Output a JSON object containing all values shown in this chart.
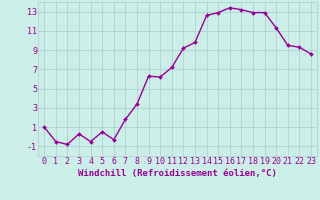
{
  "x": [
    0,
    1,
    2,
    3,
    4,
    5,
    6,
    7,
    8,
    9,
    10,
    11,
    12,
    13,
    14,
    15,
    16,
    17,
    18,
    19,
    20,
    21,
    22,
    23
  ],
  "y": [
    1,
    -0.5,
    -0.8,
    0.3,
    -0.5,
    0.5,
    -0.3,
    1.8,
    3.4,
    6.3,
    6.2,
    7.2,
    9.2,
    9.8,
    12.6,
    12.9,
    13.4,
    13.2,
    12.9,
    12.9,
    11.3,
    9.5,
    9.3,
    8.6
  ],
  "line_color": "#990099",
  "marker": "D",
  "marker_size": 2.0,
  "bg_color": "#cceee8",
  "grid_color": "#aacccc",
  "xlabel": "Windchill (Refroidissement éolien,°C)",
  "ylim": [
    -2,
    14
  ],
  "xlim": [
    -0.5,
    23.5
  ],
  "yticks": [
    -1,
    1,
    3,
    5,
    7,
    9,
    11,
    13
  ],
  "xticks": [
    0,
    1,
    2,
    3,
    4,
    5,
    6,
    7,
    8,
    9,
    10,
    11,
    12,
    13,
    14,
    15,
    16,
    17,
    18,
    19,
    20,
    21,
    22,
    23
  ],
  "xlabel_fontsize": 6.5,
  "tick_fontsize": 6.0,
  "line_width": 1.0,
  "figsize": [
    3.2,
    2.0
  ],
  "dpi": 100
}
